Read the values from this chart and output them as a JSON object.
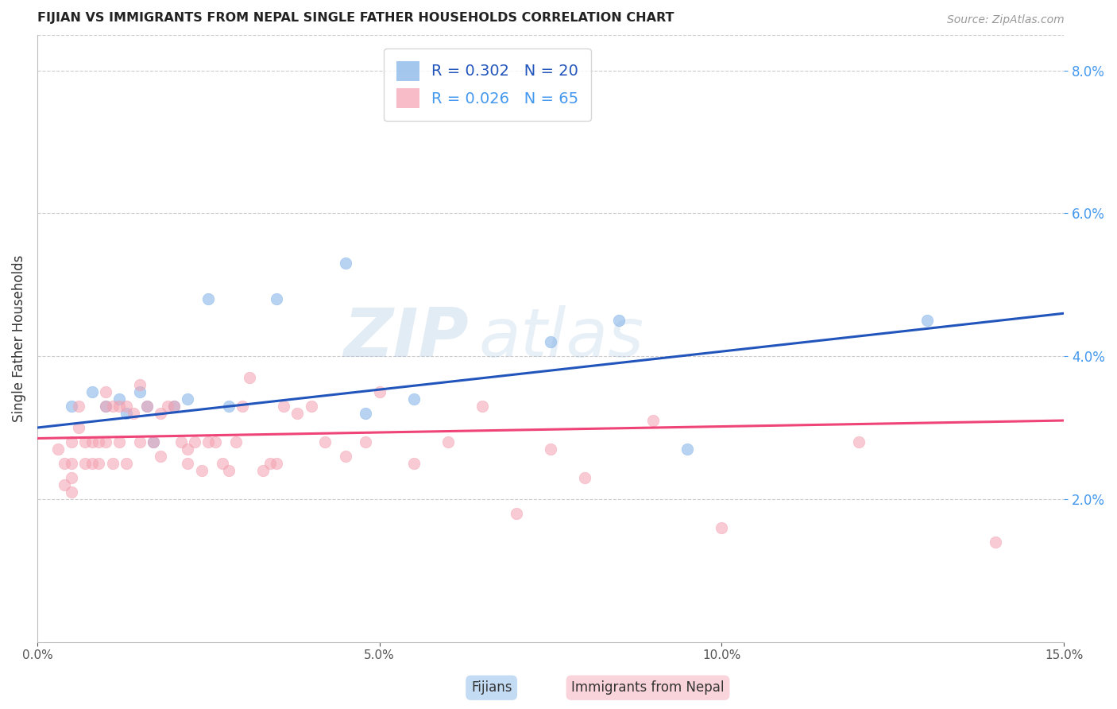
{
  "title": "FIJIAN VS IMMIGRANTS FROM NEPAL SINGLE FATHER HOUSEHOLDS CORRELATION CHART",
  "source": "Source: ZipAtlas.com",
  "ylabel": "Single Father Households",
  "xlim": [
    0.0,
    0.15
  ],
  "ylim": [
    0.0,
    0.085
  ],
  "xticks": [
    0.0,
    0.05,
    0.1,
    0.15
  ],
  "yticks_right": [
    0.02,
    0.04,
    0.06,
    0.08
  ],
  "legend_label1": "Fijians",
  "legend_label2": "Immigrants from Nepal",
  "R1": 0.302,
  "N1": 20,
  "R2": 0.026,
  "N2": 65,
  "color_fijian": "#7EB0E8",
  "color_nepal": "#F4A0B0",
  "color_line1": "#2255BB",
  "color_line2": "#EE4477",
  "color_right_axis": "#4499EE",
  "watermark_top": "ZIP",
  "watermark_bot": "atlas",
  "fijian_x": [
    0.005,
    0.008,
    0.01,
    0.012,
    0.013,
    0.015,
    0.016,
    0.017,
    0.02,
    0.022,
    0.025,
    0.028,
    0.035,
    0.045,
    0.048,
    0.055,
    0.075,
    0.085,
    0.095,
    0.13
  ],
  "fijian_y": [
    0.033,
    0.035,
    0.033,
    0.034,
    0.032,
    0.035,
    0.033,
    0.028,
    0.033,
    0.034,
    0.048,
    0.033,
    0.048,
    0.053,
    0.032,
    0.034,
    0.042,
    0.045,
    0.027,
    0.045
  ],
  "nepal_x": [
    0.003,
    0.004,
    0.004,
    0.005,
    0.005,
    0.005,
    0.005,
    0.006,
    0.006,
    0.007,
    0.007,
    0.008,
    0.008,
    0.009,
    0.009,
    0.01,
    0.01,
    0.01,
    0.011,
    0.011,
    0.012,
    0.012,
    0.013,
    0.013,
    0.014,
    0.015,
    0.015,
    0.016,
    0.017,
    0.018,
    0.018,
    0.019,
    0.02,
    0.021,
    0.022,
    0.022,
    0.023,
    0.024,
    0.025,
    0.026,
    0.027,
    0.028,
    0.029,
    0.03,
    0.031,
    0.033,
    0.034,
    0.035,
    0.036,
    0.038,
    0.04,
    0.042,
    0.045,
    0.048,
    0.05,
    0.055,
    0.06,
    0.065,
    0.07,
    0.075,
    0.08,
    0.09,
    0.1,
    0.12,
    0.14
  ],
  "nepal_y": [
    0.027,
    0.025,
    0.022,
    0.028,
    0.025,
    0.023,
    0.021,
    0.033,
    0.03,
    0.028,
    0.025,
    0.028,
    0.025,
    0.028,
    0.025,
    0.035,
    0.033,
    0.028,
    0.033,
    0.025,
    0.033,
    0.028,
    0.033,
    0.025,
    0.032,
    0.036,
    0.028,
    0.033,
    0.028,
    0.032,
    0.026,
    0.033,
    0.033,
    0.028,
    0.027,
    0.025,
    0.028,
    0.024,
    0.028,
    0.028,
    0.025,
    0.024,
    0.028,
    0.033,
    0.037,
    0.024,
    0.025,
    0.025,
    0.033,
    0.032,
    0.033,
    0.028,
    0.026,
    0.028,
    0.035,
    0.025,
    0.028,
    0.033,
    0.018,
    0.027,
    0.023,
    0.031,
    0.016,
    0.028,
    0.014
  ],
  "fijian_line_x": [
    0.0,
    0.15
  ],
  "fijian_line_y": [
    0.03,
    0.046
  ],
  "nepal_line_x": [
    0.0,
    0.15
  ],
  "nepal_line_y": [
    0.0285,
    0.031
  ]
}
